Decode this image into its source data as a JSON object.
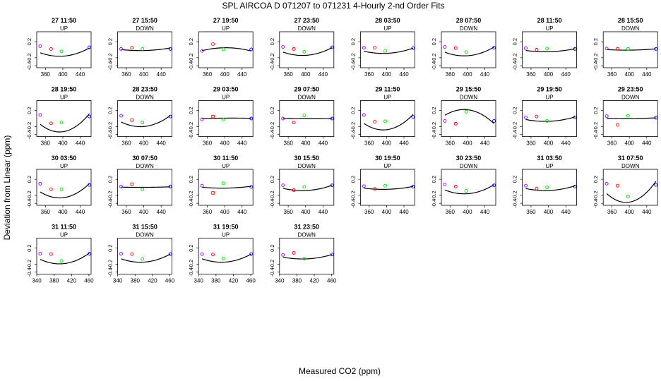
{
  "title": "SPL   AIRCOA D   071207 to 071231   4-Hourly 2-nd Order Fits",
  "xlabel": "Measured CO2 (ppm)",
  "ylabel": "Deviation from Linear (ppm)",
  "colors": {
    "low": "#9a00ff",
    "mid1": "#ff0000",
    "mid2": "#00dd00",
    "high": "#0000ff",
    "curve": "#000000"
  },
  "chart_data": {
    "type": "scatter",
    "x_tick_labels_inner": [
      "360",
      "400",
      "440"
    ],
    "x_tick_labels_bottom": [
      "340",
      "380",
      "420",
      "460"
    ],
    "y_tick_labels": [
      "0.2",
      "-0.2",
      "-0.4"
    ],
    "xlim": [
      340,
      465
    ],
    "ylim": [
      -0.45,
      0.45
    ],
    "panels": [
      {
        "label": "27 11:50",
        "dir": "UP",
        "x": [
          348,
          373,
          397,
          461
        ],
        "y": [
          0.09,
          0.02,
          -0.04,
          0.06
        ],
        "fit": [
          0.0021,
          0.0265,
          0.0705,
          -0.16
        ],
        "r": 0,
        "c": 0
      },
      {
        "label": "27 15:50",
        "dir": "DOWN",
        "x": [
          348,
          373,
          397,
          461
        ],
        "y": [
          0.02,
          0.05,
          0.02,
          0.02
        ],
        "fit": [
          0.0002,
          0.0091,
          0.0214,
          -0.02
        ],
        "r": 0,
        "c": 1
      },
      {
        "label": "27 19:50",
        "dir": "UP",
        "x": [
          348,
          373,
          397,
          461
        ],
        "y": [
          -0.03,
          0.14,
          0.01,
          0.01
        ],
        "fit": [
          -0.0012,
          0.0059,
          -0.0392,
          0.05
        ],
        "r": 0,
        "c": 2
      },
      {
        "label": "27 23:50",
        "dir": "DOWN",
        "x": [
          348,
          373,
          397,
          461
        ],
        "y": [
          0.07,
          0.02,
          -0.05,
          0.06
        ],
        "fit": [
          0.0019,
          0.0252,
          0.0673,
          -0.14
        ],
        "r": 0,
        "c": 3
      },
      {
        "label": "28 03:50",
        "dir": "UP",
        "x": [
          348,
          373,
          397,
          461
        ],
        "y": [
          0.05,
          0.05,
          -0.03,
          0.04
        ],
        "fit": [
          0.0013,
          0.0173,
          0.0446,
          -0.09
        ],
        "r": 0,
        "c": 4
      },
      {
        "label": "28 07:50",
        "dir": "DOWN",
        "x": [
          348,
          373,
          397,
          461
        ],
        "y": [
          0.07,
          0.04,
          -0.06,
          0.05
        ],
        "fit": [
          0.0022,
          0.0283,
          0.0742,
          -0.15
        ],
        "r": 0,
        "c": 5
      },
      {
        "label": "28 11:50",
        "dir": "UP",
        "x": [
          348,
          373,
          397,
          461
        ],
        "y": [
          0.04,
          0.0,
          0.03,
          0.02
        ],
        "fit": [
          0.0007,
          0.0096,
          0.0262,
          -0.05
        ],
        "r": 0,
        "c": 6
      },
      {
        "label": "28 15:50",
        "dir": "DOWN",
        "x": [
          348,
          373,
          397,
          461
        ],
        "y": [
          0.03,
          0.02,
          0.02,
          0.02
        ],
        "fit": [
          0.0001,
          0.0041,
          0.0114,
          -0.01
        ],
        "r": 0,
        "c": 7
      },
      {
        "label": "28 19:50",
        "dir": "UP",
        "x": [
          348,
          373,
          397,
          461
        ],
        "y": [
          0.09,
          -0.12,
          -0.1,
          0.05
        ],
        "fit": [
          0.0045,
          0.0583,
          0.1553,
          -0.33
        ],
        "r": 1,
        "c": 0
      },
      {
        "label": "28 23:50",
        "dir": "DOWN",
        "x": [
          348,
          373,
          397,
          461
        ],
        "y": [
          0.07,
          -0.04,
          -0.1,
          0.05
        ],
        "fit": [
          0.0028,
          0.0359,
          0.0946,
          -0.2
        ],
        "r": 1,
        "c": 1
      },
      {
        "label": "29 03:50",
        "dir": "UP",
        "x": [
          348,
          373,
          397,
          461
        ],
        "y": [
          -0.02,
          0.05,
          -0.03,
          0.0
        ],
        "fit": [
          -0.0001,
          0.0032,
          -0.0038,
          0.01
        ],
        "r": 1,
        "c": 2
      },
      {
        "label": "29 07:50",
        "dir": "DOWN",
        "x": [
          348,
          373,
          397,
          461
        ],
        "y": [
          0.0,
          -0.1,
          0.08,
          0.0
        ],
        "fit": [
          0.0,
          -0.0011,
          0.0017,
          0.0
        ],
        "r": 1,
        "c": 3
      },
      {
        "label": "29 11:50",
        "dir": "UP",
        "x": [
          348,
          373,
          397,
          461
        ],
        "y": [
          0.09,
          -0.08,
          -0.07,
          0.04
        ],
        "fit": [
          0.0039,
          0.0496,
          0.131,
          -0.28
        ],
        "r": 1,
        "c": 4
      },
      {
        "label": "29 15:50",
        "dir": "DOWN",
        "x": [
          348,
          373,
          397,
          461
        ],
        "y": [
          -0.06,
          -0.13,
          0.17,
          -0.06
        ],
        "fit": [
          -0.0038,
          -0.0468,
          -0.1182,
          0.22
        ],
        "r": 1,
        "c": 5
      },
      {
        "label": "29 19:50",
        "dir": "UP",
        "x": [
          348,
          373,
          397,
          461
        ],
        "y": [
          0.03,
          0.05,
          -0.06,
          0.03
        ],
        "fit": [
          0.0011,
          0.0144,
          0.038,
          -0.07
        ],
        "r": 1,
        "c": 6
      },
      {
        "label": "29 23:50",
        "dir": "DOWN",
        "x": [
          348,
          373,
          397,
          461
        ],
        "y": [
          0.06,
          -0.16,
          0.07,
          0.02
        ],
        "fit": [
          0.0001,
          0.0018,
          0.006,
          0.0
        ],
        "r": 1,
        "c": 7
      },
      {
        "label": "30 03:50",
        "dir": "UP",
        "x": [
          348,
          373,
          397,
          461
        ],
        "y": [
          0.09,
          -0.05,
          -0.05,
          0.06
        ],
        "fit": [
          0.0036,
          0.046,
          0.1212,
          -0.26
        ],
        "r": 2,
        "c": 0
      },
      {
        "label": "30 07:50",
        "dir": "DOWN",
        "x": [
          348,
          373,
          397,
          461
        ],
        "y": [
          0.02,
          0.08,
          -0.05,
          0.02
        ],
        "fit": [
          0.0001,
          0.0018,
          0.0041,
          0.0
        ],
        "r": 2,
        "c": 1
      },
      {
        "label": "30 11:50",
        "dir": "UP",
        "x": [
          348,
          373,
          397,
          461
        ],
        "y": [
          0.04,
          -0.14,
          0.1,
          0.01
        ],
        "fit": [
          0.0003,
          0.0048,
          0.0168,
          -0.02
        ],
        "r": 2,
        "c": 2
      },
      {
        "label": "30 15:50",
        "dir": "DOWN",
        "x": [
          348,
          373,
          397,
          461
        ],
        "y": [
          0.05,
          -0.07,
          0.01,
          0.05
        ],
        "fit": [
          0.0014,
          0.0169,
          0.0457,
          -0.08
        ],
        "r": 2,
        "c": 3
      },
      {
        "label": "30 19:50",
        "dir": "UP",
        "x": [
          348,
          373,
          397,
          461
        ],
        "y": [
          0.03,
          -0.04,
          0.04,
          0.02
        ],
        "fit": [
          0.0007,
          0.0094,
          0.0249,
          -0.05
        ],
        "r": 2,
        "c": 4
      },
      {
        "label": "30 23:50",
        "dir": "DOWN",
        "x": [
          348,
          373,
          397,
          461
        ],
        "y": [
          0.07,
          0.02,
          -0.09,
          0.05
        ],
        "fit": [
          0.0023,
          0.0293,
          0.0781,
          -0.16
        ],
        "r": 2,
        "c": 5
      },
      {
        "label": "31 03:50",
        "dir": "UP",
        "x": [
          348,
          373,
          397,
          461
        ],
        "y": [
          0.04,
          -0.03,
          0.0,
          0.02
        ],
        "fit": [
          0.0012,
          0.0151,
          0.041,
          -0.08
        ],
        "r": 2,
        "c": 6
      },
      {
        "label": "31 07:50",
        "dir": "DOWN",
        "x": [
          348,
          373,
          397,
          461
        ],
        "y": [
          0.09,
          0.04,
          -0.23,
          0.06
        ],
        "fit": [
          0.0052,
          0.0672,
          0.1784,
          -0.37
        ],
        "r": 2,
        "c": 7
      },
      {
        "label": "31 11:50",
        "dir": "UP",
        "x": [
          348,
          373,
          397,
          461
        ],
        "y": [
          0.06,
          0.05,
          -0.12,
          0.06
        ],
        "fit": [
          0.0027,
          0.0347,
          0.0918,
          -0.19
        ],
        "r": 3,
        "c": 0
      },
      {
        "label": "31 15:50",
        "dir": "DOWN",
        "x": [
          348,
          373,
          397,
          461
        ],
        "y": [
          0.06,
          0.05,
          -0.07,
          0.05
        ],
        "fit": [
          0.002,
          0.0263,
          0.0693,
          -0.15
        ],
        "r": 3,
        "c": 1
      },
      {
        "label": "31 19:50",
        "dir": "UP",
        "x": [
          348,
          373,
          397,
          461
        ],
        "y": [
          0.05,
          0.04,
          -0.06,
          0.05
        ],
        "fit": [
          0.002,
          0.0263,
          0.0693,
          -0.15
        ],
        "r": 3,
        "c": 2
      },
      {
        "label": "31 23:50",
        "dir": "DOWN",
        "x": [
          348,
          373,
          397,
          461
        ],
        "y": [
          0.03,
          0.08,
          -0.06,
          0.04
        ],
        "fit": [
          0.0011,
          0.0144,
          0.038,
          -0.07
        ],
        "r": 3,
        "c": 3
      }
    ]
  }
}
